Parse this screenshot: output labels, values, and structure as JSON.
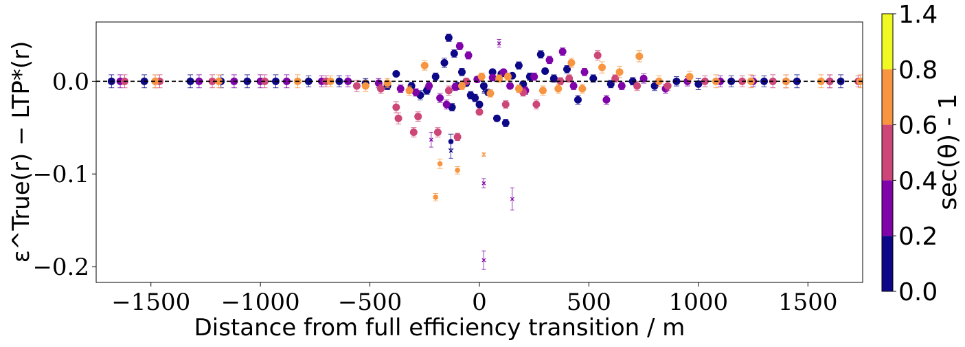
{
  "chart_data": {
    "type": "scatter",
    "xlabel": "Distance from full efficiency transition / m",
    "ylabel": "ε^True(r) − LTP*(r)",
    "xlim": [
      -1750,
      1750
    ],
    "ylim": [
      -0.217,
      0.064
    ],
    "x_ticks": [
      -1500,
      -1000,
      -500,
      0,
      500,
      1000,
      1500
    ],
    "x_tick_labels": [
      "−1500",
      "−1000",
      "−500",
      "0",
      "500",
      "1000",
      "1500"
    ],
    "y_ticks": [
      0.0,
      -0.1,
      -0.2
    ],
    "y_tick_labels": [
      "0.0",
      "−0.1",
      "−0.2"
    ],
    "reference_line": {
      "y": 0.0,
      "style": "dashed",
      "color": "#000000"
    },
    "colorbar": {
      "label": "sec(θ) - 1",
      "range": [
        0.0,
        1.4
      ],
      "tick_labels": [
        "0.0",
        "0.2",
        "0.4",
        "0.6",
        "0.8",
        "1.4"
      ],
      "bands": [
        {
          "from": 0.0,
          "to": 0.2,
          "color": "#0d0887"
        },
        {
          "from": 0.2,
          "to": 0.4,
          "color": "#7e03a8"
        },
        {
          "from": 0.4,
          "to": 0.6,
          "color": "#cc4778"
        },
        {
          "from": 0.6,
          "to": 0.8,
          "color": "#f89540"
        },
        {
          "from": 0.8,
          "to": 1.4,
          "color": "#f0f921"
        }
      ]
    },
    "series": [
      {
        "band": "0.0-0.2",
        "color": "#0d0887",
        "points": [
          [
            -1680,
            0.0,
            0.007
          ],
          [
            -1530,
            0.0,
            0.007
          ],
          [
            -1320,
            0.0,
            0.007
          ],
          [
            -1180,
            0.0,
            0.007
          ],
          [
            -1060,
            0.0,
            0.007
          ],
          [
            -930,
            0.0,
            0.007
          ],
          [
            -780,
            0.0,
            0.006
          ],
          [
            -640,
            0.0,
            0.006
          ],
          [
            -520,
            -0.002,
            0.005
          ],
          [
            -420,
            -0.005,
            0.004
          ],
          [
            -380,
            0.008,
            0.002
          ],
          [
            -310,
            -0.005,
            0.004
          ],
          [
            -270,
            -0.015,
            0.005
          ],
          [
            -240,
            -0.01,
            0.004
          ],
          [
            -200,
            0.005,
            0.004
          ],
          [
            -160,
            0.02,
            0.005
          ],
          [
            -140,
            0.047,
            0.004
          ],
          [
            -130,
            -0.065,
            0.008
          ],
          [
            -125,
            -0.028,
            0.004
          ],
          [
            -115,
            0.03,
            0.004
          ],
          [
            -100,
            -0.005,
            0.004
          ],
          [
            -80,
            0.01,
            0.004
          ],
          [
            -60,
            -0.002,
            0.003
          ],
          [
            -40,
            -0.015,
            0.004
          ],
          [
            -20,
            -0.018,
            0.004
          ],
          [
            0,
            -0.025,
            0.003
          ],
          [
            20,
            -0.005,
            0.003
          ],
          [
            40,
            -0.012,
            0.003
          ],
          [
            60,
            0.01,
            0.003
          ],
          [
            80,
            -0.04,
            0.003
          ],
          [
            100,
            0.008,
            0.003
          ],
          [
            120,
            -0.045,
            0.004
          ],
          [
            150,
            0.006,
            0.003
          ],
          [
            180,
            0.017,
            0.004
          ],
          [
            200,
            -0.003,
            0.003
          ],
          [
            230,
            0.005,
            0.004
          ],
          [
            280,
            0.029,
            0.004
          ],
          [
            300,
            0.011,
            0.003
          ],
          [
            340,
            0.003,
            0.004
          ],
          [
            400,
            0.013,
            0.004
          ],
          [
            450,
            -0.02,
            0.005
          ],
          [
            520,
            0.003,
            0.004
          ],
          [
            600,
            -0.003,
            0.004
          ],
          [
            700,
            0.0,
            0.004
          ],
          [
            800,
            -0.005,
            0.005
          ],
          [
            900,
            0.0,
            0.005
          ],
          [
            1000,
            -0.003,
            0.006
          ],
          [
            1150,
            0.0,
            0.006
          ],
          [
            1300,
            0.0,
            0.006
          ],
          [
            1450,
            0.0,
            0.007
          ],
          [
            1650,
            0.0,
            0.007
          ]
        ],
        "crosses": [
          [
            -130,
            -0.075,
            0.008
          ],
          [
            20,
            -0.01,
            0.003
          ]
        ]
      },
      {
        "band": "0.2-0.4",
        "color": "#7e03a8",
        "points": [
          [
            -1640,
            0.0,
            0.007
          ],
          [
            -1480,
            0.0,
            0.007
          ],
          [
            -1280,
            0.0,
            0.007
          ],
          [
            -1120,
            0.0,
            0.007
          ],
          [
            -1000,
            0.0,
            0.007
          ],
          [
            -880,
            0.0,
            0.007
          ],
          [
            -720,
            0.0,
            0.006
          ],
          [
            -600,
            0.0,
            0.006
          ],
          [
            -460,
            -0.002,
            0.005
          ],
          [
            -360,
            -0.008,
            0.004
          ],
          [
            -290,
            -0.012,
            0.004
          ],
          [
            -230,
            -0.005,
            0.004
          ],
          [
            -180,
            -0.018,
            0.005
          ],
          [
            -150,
            -0.025,
            0.005
          ],
          [
            -110,
            -0.006,
            0.004
          ],
          [
            -90,
            0.038,
            0.004
          ],
          [
            -50,
            0.028,
            0.004
          ],
          [
            -10,
            0.002,
            0.003
          ],
          [
            60,
            0.004,
            0.003
          ],
          [
            110,
            0.01,
            0.003
          ],
          [
            140,
            -0.005,
            0.003
          ],
          [
            210,
            -0.01,
            0.004
          ],
          [
            250,
            0.005,
            0.004
          ],
          [
            320,
            0.023,
            0.004
          ],
          [
            380,
            0.032,
            0.004
          ],
          [
            430,
            -0.005,
            0.004
          ],
          [
            480,
            0.01,
            0.004
          ],
          [
            580,
            -0.02,
            0.005
          ],
          [
            650,
            -0.005,
            0.004
          ],
          [
            750,
            0.003,
            0.005
          ],
          [
            850,
            -0.008,
            0.005
          ],
          [
            950,
            0.0,
            0.005
          ],
          [
            1100,
            0.0,
            0.006
          ],
          [
            1250,
            0.0,
            0.006
          ],
          [
            1400,
            0.0,
            0.007
          ],
          [
            1600,
            0.0,
            0.007
          ]
        ],
        "crosses": [
          [
            -220,
            -0.063,
            0.008
          ],
          [
            20,
            -0.11,
            0.005
          ],
          [
            20,
            -0.193,
            0.01
          ],
          [
            90,
            0.041,
            0.004
          ],
          [
            150,
            -0.127,
            0.012
          ]
        ]
      },
      {
        "band": "0.4-0.6",
        "color": "#cc4778",
        "points": [
          [
            -1620,
            0.0,
            0.007
          ],
          [
            -1460,
            0.0,
            0.007
          ],
          [
            -1220,
            0.0,
            0.007
          ],
          [
            -980,
            0.0,
            0.007
          ],
          [
            -700,
            0.0,
            0.006
          ],
          [
            -560,
            -0.005,
            0.006
          ],
          [
            -450,
            -0.008,
            0.005
          ],
          [
            -380,
            -0.028,
            0.006
          ],
          [
            -370,
            -0.04,
            0.006
          ],
          [
            -300,
            -0.055,
            0.005
          ],
          [
            -280,
            -0.038,
            0.005
          ],
          [
            -190,
            -0.055,
            0.005
          ],
          [
            -140,
            -0.01,
            0.005
          ],
          [
            -100,
            -0.06,
            0.004
          ],
          [
            -60,
            0.0,
            0.003
          ],
          [
            0,
            -0.033,
            0.003
          ],
          [
            120,
            -0.025,
            0.004
          ],
          [
            200,
            -0.012,
            0.004
          ],
          [
            260,
            -0.025,
            0.005
          ],
          [
            370,
            0.0,
            0.004
          ],
          [
            410,
            0.003,
            0.004
          ],
          [
            540,
            0.028,
            0.005
          ],
          [
            620,
            0.003,
            0.004
          ],
          [
            720,
            -0.005,
            0.005
          ],
          [
            860,
            -0.005,
            0.005
          ],
          [
            1030,
            0.0,
            0.006
          ],
          [
            1200,
            0.0,
            0.006
          ],
          [
            1340,
            0.0,
            0.007
          ],
          [
            1600,
            0.0,
            0.007
          ],
          [
            1730,
            0.0,
            0.006
          ]
        ],
        "crosses": []
      },
      {
        "band": "0.6-0.8",
        "color": "#f89540",
        "points": [
          [
            -1480,
            0.0,
            0.007
          ],
          [
            -1190,
            0.0,
            0.007
          ],
          [
            -830,
            0.0,
            0.007
          ],
          [
            -680,
            0.0,
            0.006
          ],
          [
            -520,
            -0.005,
            0.006
          ],
          [
            -420,
            -0.002,
            0.005
          ],
          [
            -320,
            -0.01,
            0.005
          ],
          [
            -250,
            0.017,
            0.005
          ],
          [
            -200,
            -0.125,
            0.004
          ],
          [
            -180,
            -0.089,
            0.005
          ],
          [
            -100,
            -0.096,
            0.004
          ],
          [
            -80,
            -0.005,
            0.004
          ],
          [
            10,
            0.005,
            0.004
          ],
          [
            50,
            -0.013,
            0.004
          ],
          [
            90,
            0.003,
            0.004
          ],
          [
            130,
            0.005,
            0.004
          ],
          [
            180,
            -0.008,
            0.004
          ],
          [
            290,
            -0.01,
            0.005
          ],
          [
            360,
            -0.008,
            0.005
          ],
          [
            420,
            0.02,
            0.005
          ],
          [
            470,
            -0.008,
            0.005
          ],
          [
            560,
            0.015,
            0.006
          ],
          [
            640,
            0.01,
            0.006
          ],
          [
            730,
            0.027,
            0.006
          ],
          [
            820,
            0.0,
            0.006
          ],
          [
            960,
            0.005,
            0.006
          ],
          [
            1080,
            0.0,
            0.007
          ],
          [
            1240,
            0.0,
            0.007
          ],
          [
            1400,
            0.0,
            0.007
          ],
          [
            1560,
            0.0,
            0.007
          ],
          [
            1740,
            0.0,
            0.007
          ]
        ],
        "crosses": [
          [
            20,
            -0.079,
            0.002
          ]
        ]
      }
    ]
  }
}
